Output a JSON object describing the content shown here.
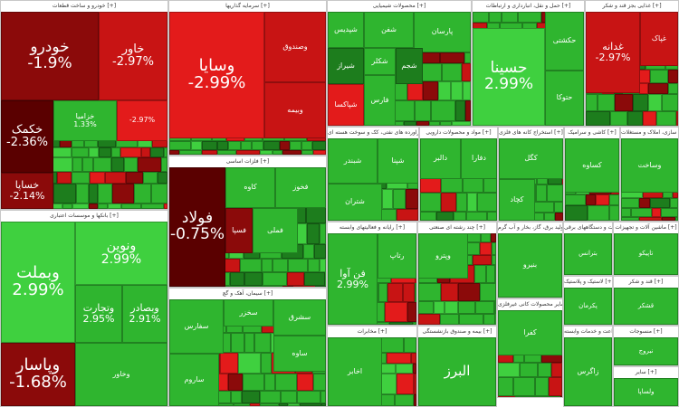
{
  "colors": {
    "deep_red": "#5a0000",
    "dark_red": "#8b0a0a",
    "red": "#c81414",
    "bright_red": "#e31b1b",
    "green": "#2fb52f",
    "bright_green": "#3fd03f",
    "dark_green": "#1d7d1d",
    "neutral": "#555555"
  },
  "sectors": [
    {
      "id": "auto",
      "title": "خودرو و ساخت قطعات [+]",
      "tiles": [
        {
          "name": "خودرو",
          "change": "-1.9%",
          "color": "dark_red"
        },
        {
          "name": "خاور",
          "change": "-2.97%",
          "color": "red"
        },
        {
          "name": "خکمک",
          "change": "-2.36%",
          "color": "deep_red"
        },
        {
          "name": "خساپا",
          "change": "-2.14%",
          "color": "dark_red"
        },
        {
          "name": "خزامیا",
          "change": "1.33%",
          "color": "green"
        },
        {
          "name": "",
          "change": "-2.97%",
          "color": "bright_red"
        }
      ]
    },
    {
      "id": "invest",
      "title": "سرمایه گذاریها [+]",
      "tiles": [
        {
          "name": "وسایا",
          "change": "-2.99%",
          "color": "bright_red"
        },
        {
          "name": "وصندوق",
          "change": "",
          "color": "red"
        },
        {
          "name": "وبیمه",
          "change": "",
          "color": "red"
        }
      ]
    },
    {
      "id": "chem",
      "title": "محصولات شیمیایی [+]",
      "tiles": [
        {
          "name": "شپدیس",
          "change": "",
          "color": "green"
        },
        {
          "name": "شفن",
          "change": "",
          "color": "green"
        },
        {
          "name": "شیراز",
          "change": "",
          "color": "dark_green"
        },
        {
          "name": "شکلر",
          "change": "",
          "color": "green"
        },
        {
          "name": "پارسان",
          "change": "",
          "color": "green"
        },
        {
          "name": "شجم",
          "change": "",
          "color": "dark_green"
        },
        {
          "name": "فارس",
          "change": "",
          "color": "green"
        },
        {
          "name": "شپاکسا",
          "change": "",
          "color": "bright_red"
        }
      ]
    },
    {
      "id": "transport",
      "title": "حمل و نقل، انبارداری و ارتباطات [+]",
      "tiles": [
        {
          "name": "حسینا",
          "change": "2.99%",
          "color": "bright_green"
        },
        {
          "name": "حکشتی",
          "change": "",
          "color": "green"
        },
        {
          "name": "حتوکا",
          "change": "",
          "color": "green"
        }
      ]
    },
    {
      "id": "bank",
      "title": "بانکها و موسسات اعتباری [+]",
      "tiles": [
        {
          "name": "وبملت",
          "change": "2.99%",
          "color": "bright_green"
        },
        {
          "name": "ونوین",
          "change": "2.99%",
          "color": "bright_green"
        },
        {
          "name": "وتجارت",
          "change": "2.95%",
          "color": "green"
        },
        {
          "name": "وبصادر",
          "change": "2.91%",
          "color": "green"
        },
        {
          "name": "وپاسار",
          "change": "-1.68%",
          "color": "dark_red"
        },
        {
          "name": "وخاور",
          "change": "",
          "color": "green"
        }
      ]
    },
    {
      "id": "metal",
      "title": "فلزات اساسی [+]",
      "tiles": [
        {
          "name": "فولاد",
          "change": "-0.75%",
          "color": "deep_red"
        },
        {
          "name": "کاوه",
          "change": "",
          "color": "green"
        },
        {
          "name": "فخوز",
          "change": "",
          "color": "green"
        },
        {
          "name": "فسپا",
          "change": "",
          "color": "dark_red"
        },
        {
          "name": "فملی",
          "change": "",
          "color": "green"
        }
      ]
    },
    {
      "id": "cement",
      "title": "سیمان، آهک و گچ [+]",
      "tiles": [
        {
          "name": "سفارس",
          "change": "",
          "color": "green"
        },
        {
          "name": "سخزر",
          "change": "",
          "color": "green"
        },
        {
          "name": "ساروم",
          "change": "",
          "color": "green"
        },
        {
          "name": "سشرق",
          "change": "",
          "color": "green"
        },
        {
          "name": "ساوه",
          "change": "",
          "color": "green"
        }
      ]
    },
    {
      "id": "oil",
      "title": "فراورده های نفتی، کک و سوخت هسته ای [+]",
      "tiles": [
        {
          "name": "شبندر",
          "change": "",
          "color": "green"
        },
        {
          "name": "شپنا",
          "change": "",
          "color": "green"
        },
        {
          "name": "شتران",
          "change": "",
          "color": "green"
        }
      ]
    },
    {
      "id": "food",
      "title": "غذایی بجز قند و شکر [+]",
      "tiles": [
        {
          "name": "غدانه",
          "change": "-2.97%",
          "color": "red"
        },
        {
          "name": "غپاک",
          "change": "",
          "color": "red"
        }
      ]
    },
    {
      "id": "pharma",
      "title": "مواد و محصولات دارویی [+]",
      "tiles": [
        {
          "name": "دالبر",
          "change": "",
          "color": "green"
        },
        {
          "name": "دفارا",
          "change": "",
          "color": "green"
        }
      ]
    },
    {
      "id": "mining",
      "title": "استخراج کانه های فلزی [+]",
      "tiles": [
        {
          "name": "کگل",
          "change": "",
          "color": "green"
        },
        {
          "name": "کچاد",
          "change": "",
          "color": "green"
        }
      ]
    },
    {
      "id": "ceramic",
      "title": "کاشی و سرامیک [+]",
      "tiles": [
        {
          "name": "کساوه",
          "change": "",
          "color": "green"
        }
      ]
    },
    {
      "id": "it",
      "title": "رایانه و فعالیتهای وابسته [+]",
      "tiles": [
        {
          "name": "فن آوا",
          "change": "2.99%",
          "color": "green"
        },
        {
          "name": "رتاپ",
          "change": "",
          "color": "green"
        }
      ]
    },
    {
      "id": "multi",
      "title": "چند رشته ای صنعتی [+]",
      "tiles": [
        {
          "name": "وپترو",
          "change": "",
          "color": "green"
        }
      ]
    },
    {
      "id": "power",
      "title": "تولید برق، گاز، بخار و آب گرم [+]",
      "tiles": [
        {
          "name": "بنیرو",
          "change": "",
          "color": "green"
        }
      ]
    },
    {
      "id": "electric",
      "title": "ماشین آلات و دستگاههای برقی [+]",
      "tiles": [
        {
          "name": "بترانس",
          "change": "",
          "color": "green"
        }
      ]
    },
    {
      "id": "rubber",
      "title": "لاستیک و پلاستیک [+]",
      "tiles": [
        {
          "name": "پکرمان",
          "change": "",
          "color": "green"
        }
      ]
    },
    {
      "id": "sugar",
      "title": "قند و شکر [+]",
      "tiles": [
        {
          "name": "قشکر",
          "change": "",
          "color": "green"
        }
      ]
    },
    {
      "id": "nonmetal",
      "title": "سایر محصولات کانی غیرفلزی [+]",
      "tiles": [
        {
          "name": "کفرا",
          "change": "",
          "color": "green"
        }
      ]
    },
    {
      "id": "telecom",
      "title": "مخابرات [+]",
      "tiles": [
        {
          "name": "اخابر",
          "change": "",
          "color": "green"
        }
      ]
    },
    {
      "id": "insurance",
      "title": "بیمه و صندوق بازنشستگی [+]",
      "tiles": [
        {
          "name": "البرز",
          "change": "",
          "color": "green"
        }
      ]
    },
    {
      "id": "farm",
      "title": "زراعت و خدمات وابسته [+]",
      "tiles": [
        {
          "name": "زاگرس",
          "change": "",
          "color": "green"
        }
      ]
    },
    {
      "id": "construction",
      "title": "انبوه سازی، املاک و مستغلات [+]",
      "tiles": [
        {
          "name": "وساخت",
          "change": "",
          "color": "green"
        }
      ]
    },
    {
      "id": "machinery",
      "title": "ماشین آلات و تجهیزات [+]",
      "tiles": [
        {
          "name": "تاپیکو",
          "change": "",
          "color": "green"
        }
      ]
    },
    {
      "id": "textile",
      "title": "منسوجات [+]",
      "tiles": [
        {
          "name": "نبروج",
          "change": "",
          "color": "green"
        }
      ]
    },
    {
      "id": "misc",
      "title": "سایر [+]",
      "tiles": [
        {
          "name": "ولساپا",
          "change": "",
          "color": "green"
        }
      ]
    }
  ]
}
